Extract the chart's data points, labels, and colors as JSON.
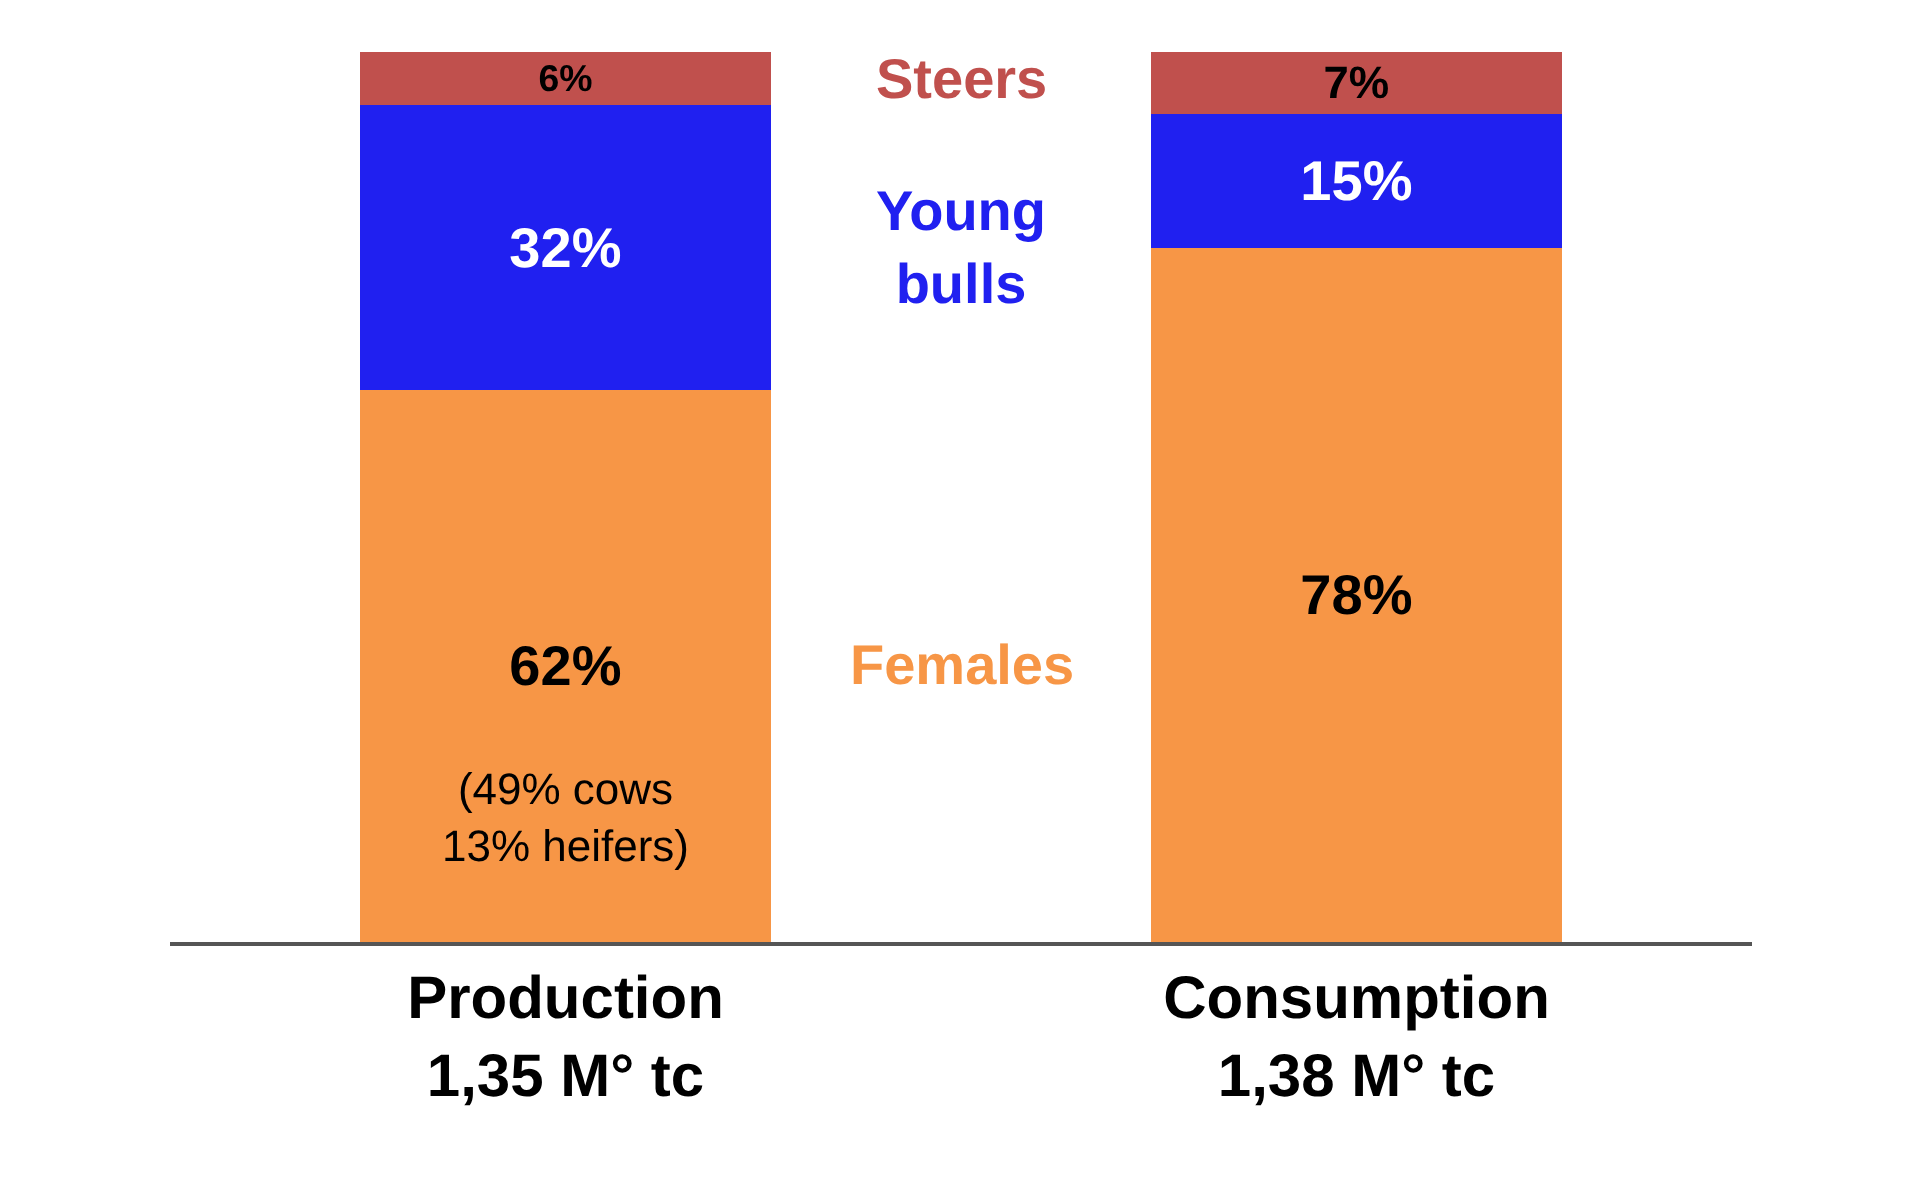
{
  "chart_data": {
    "type": "bar",
    "stacked": true,
    "legend": false,
    "tick_labels": "x",
    "categories": [
      "Production\n1,35 M° tc",
      "Consumption\n1,38 M° tc"
    ],
    "series": [
      {
        "name": "Females",
        "color": "#f79646",
        "values": [
          62,
          78
        ],
        "value_labels": [
          "62%",
          "78%"
        ]
      },
      {
        "name": "Young bulls",
        "color": "#2020f0",
        "values": [
          32,
          15
        ],
        "value_labels": [
          "32%",
          "15%"
        ]
      },
      {
        "name": "Steers",
        "color": "#c0504d",
        "values": [
          6,
          7
        ],
        "value_labels": [
          "6%",
          "7%"
        ]
      }
    ],
    "annotations": [
      "(49% cows\n13% heifers)"
    ]
  }
}
